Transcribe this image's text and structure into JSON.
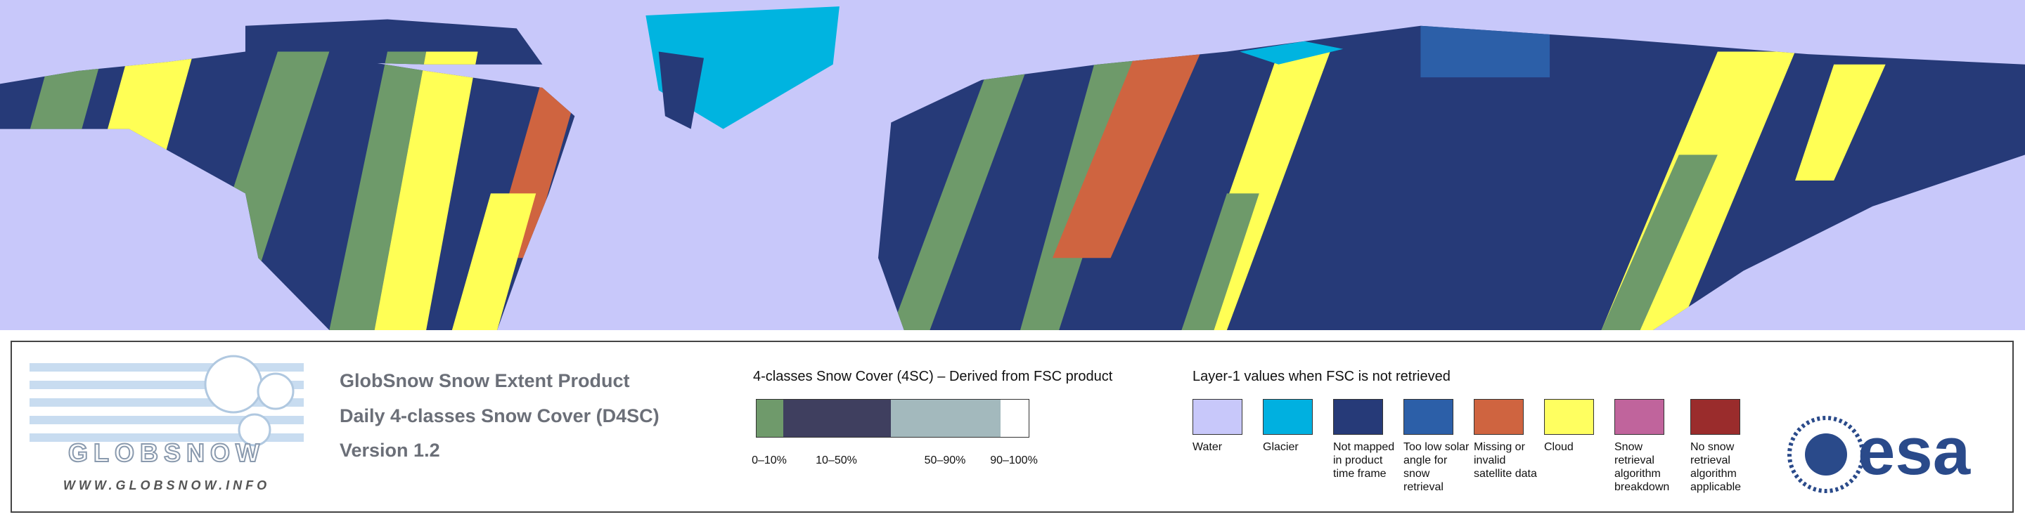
{
  "header": {
    "logo": "GLOBSNOW",
    "website": "WWW.GLOBSNOW.INFO",
    "title_lines": [
      "GlobSnow Snow Extent Product",
      "Daily 4-classes Snow Cover (D4SC)",
      "Version 1.2"
    ]
  },
  "snow_cover_legend": {
    "title": "4-classes Snow Cover (4SC) – Derived from FSC product",
    "classes": [
      {
        "label": "0–10%",
        "color": "#6f9a6b"
      },
      {
        "label": "10–50%",
        "color": "#3f3f5f"
      },
      {
        "label": "50–90%",
        "color": "#a3b9bd"
      },
      {
        "label": "90–100%",
        "color": "#ffffff"
      }
    ]
  },
  "layer1_legend": {
    "title": "Layer-1 values when FSC is not retrieved",
    "items": [
      {
        "label": "Water",
        "color": "#c8c8fa"
      },
      {
        "label": "Glacier",
        "color": "#00b0e0"
      },
      {
        "label": "Not mapped in product time frame",
        "color": "#263a78"
      },
      {
        "label": "Too low solar angle for snow retrieval",
        "color": "#2c5fa8"
      },
      {
        "label": "Missing or invalid satellite data",
        "color": "#cf6440"
      },
      {
        "label": "Cloud",
        "color": "#ffff60"
      },
      {
        "label": "Snow retrieval algorithm breakdown",
        "color": "#c0649c"
      },
      {
        "label": "No snow retrieval algorithm applicable",
        "color": "#9a2c2c"
      }
    ]
  },
  "logo": {
    "text": "esa"
  }
}
